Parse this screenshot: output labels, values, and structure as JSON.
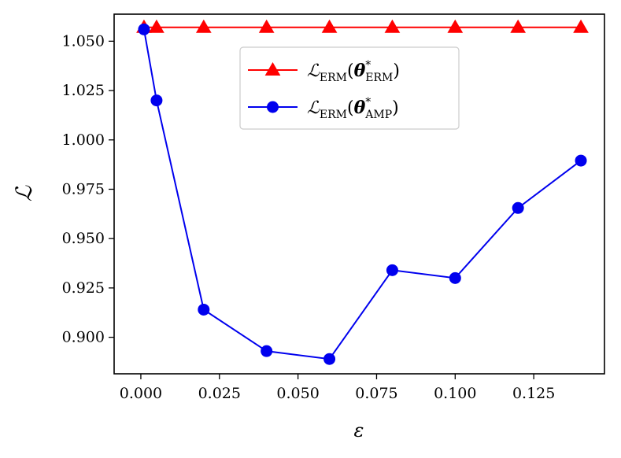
{
  "chart_data": {
    "type": "line",
    "xlabel": "ε",
    "ylabel": "ℒ",
    "xlim": [
      -0.0085,
      0.1475
    ],
    "ylim": [
      0.8815,
      1.0637
    ],
    "x_ticks": [
      0.0,
      0.025,
      0.05,
      0.075,
      0.1,
      0.125
    ],
    "x_tick_labels": [
      "0.000",
      "0.025",
      "0.050",
      "0.075",
      "0.100",
      "0.125"
    ],
    "y_ticks": [
      0.9,
      0.925,
      0.95,
      0.975,
      1.0,
      1.025,
      1.05
    ],
    "y_tick_labels": [
      "0.900",
      "0.925",
      "0.950",
      "0.975",
      "1.000",
      "1.025",
      "1.050"
    ],
    "grid": false,
    "legend_position": "top-center",
    "series": [
      {
        "name": "ℒERM(θ*ERM)",
        "legend": {
          "main": "ℒ",
          "sub": "ERM",
          "arg": "θ",
          "sup": "*",
          "argsub": "ERM"
        },
        "color": "#ff0000",
        "marker": "triangle",
        "x": [
          0.001,
          0.005,
          0.02,
          0.04,
          0.06,
          0.08,
          0.1,
          0.12,
          0.14
        ],
        "y": [
          1.057,
          1.057,
          1.057,
          1.057,
          1.057,
          1.057,
          1.057,
          1.057,
          1.057
        ]
      },
      {
        "name": "ℒERM(θ*AMP)",
        "legend": {
          "main": "ℒ",
          "sub": "ERM",
          "arg": "θ",
          "sup": "*",
          "argsub": "AMP"
        },
        "color": "#0000ee",
        "marker": "circle",
        "x": [
          0.001,
          0.005,
          0.02,
          0.04,
          0.06,
          0.08,
          0.1,
          0.12,
          0.14
        ],
        "y": [
          1.056,
          1.02,
          0.914,
          0.893,
          0.889,
          0.934,
          0.93,
          0.9655,
          0.9895
        ]
      }
    ]
  }
}
